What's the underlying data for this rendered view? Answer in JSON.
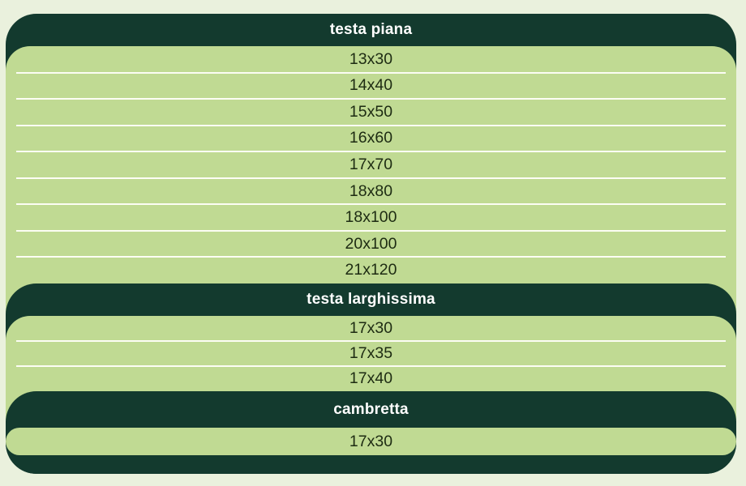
{
  "page": {
    "background_color": "#eaf1dd"
  },
  "table": {
    "colors": {
      "band_dark_green": "#133a2e",
      "section_light_green": "#c0da93",
      "header_text": "#ffffff",
      "row_text": "#1d2b12",
      "separator_line": "#fcfdf4"
    },
    "sections": [
      {
        "header": "testa piana",
        "rows": [
          "13x30",
          "14x40",
          "15x50",
          "16x60",
          "17x70",
          "18x80",
          "18x100",
          "20x100",
          "21x120"
        ]
      },
      {
        "header": "testa larghissima",
        "rows": [
          "17x30",
          "17x35",
          "17x40"
        ]
      },
      {
        "header": "cambretta",
        "rows": [
          "17x30"
        ]
      }
    ]
  }
}
